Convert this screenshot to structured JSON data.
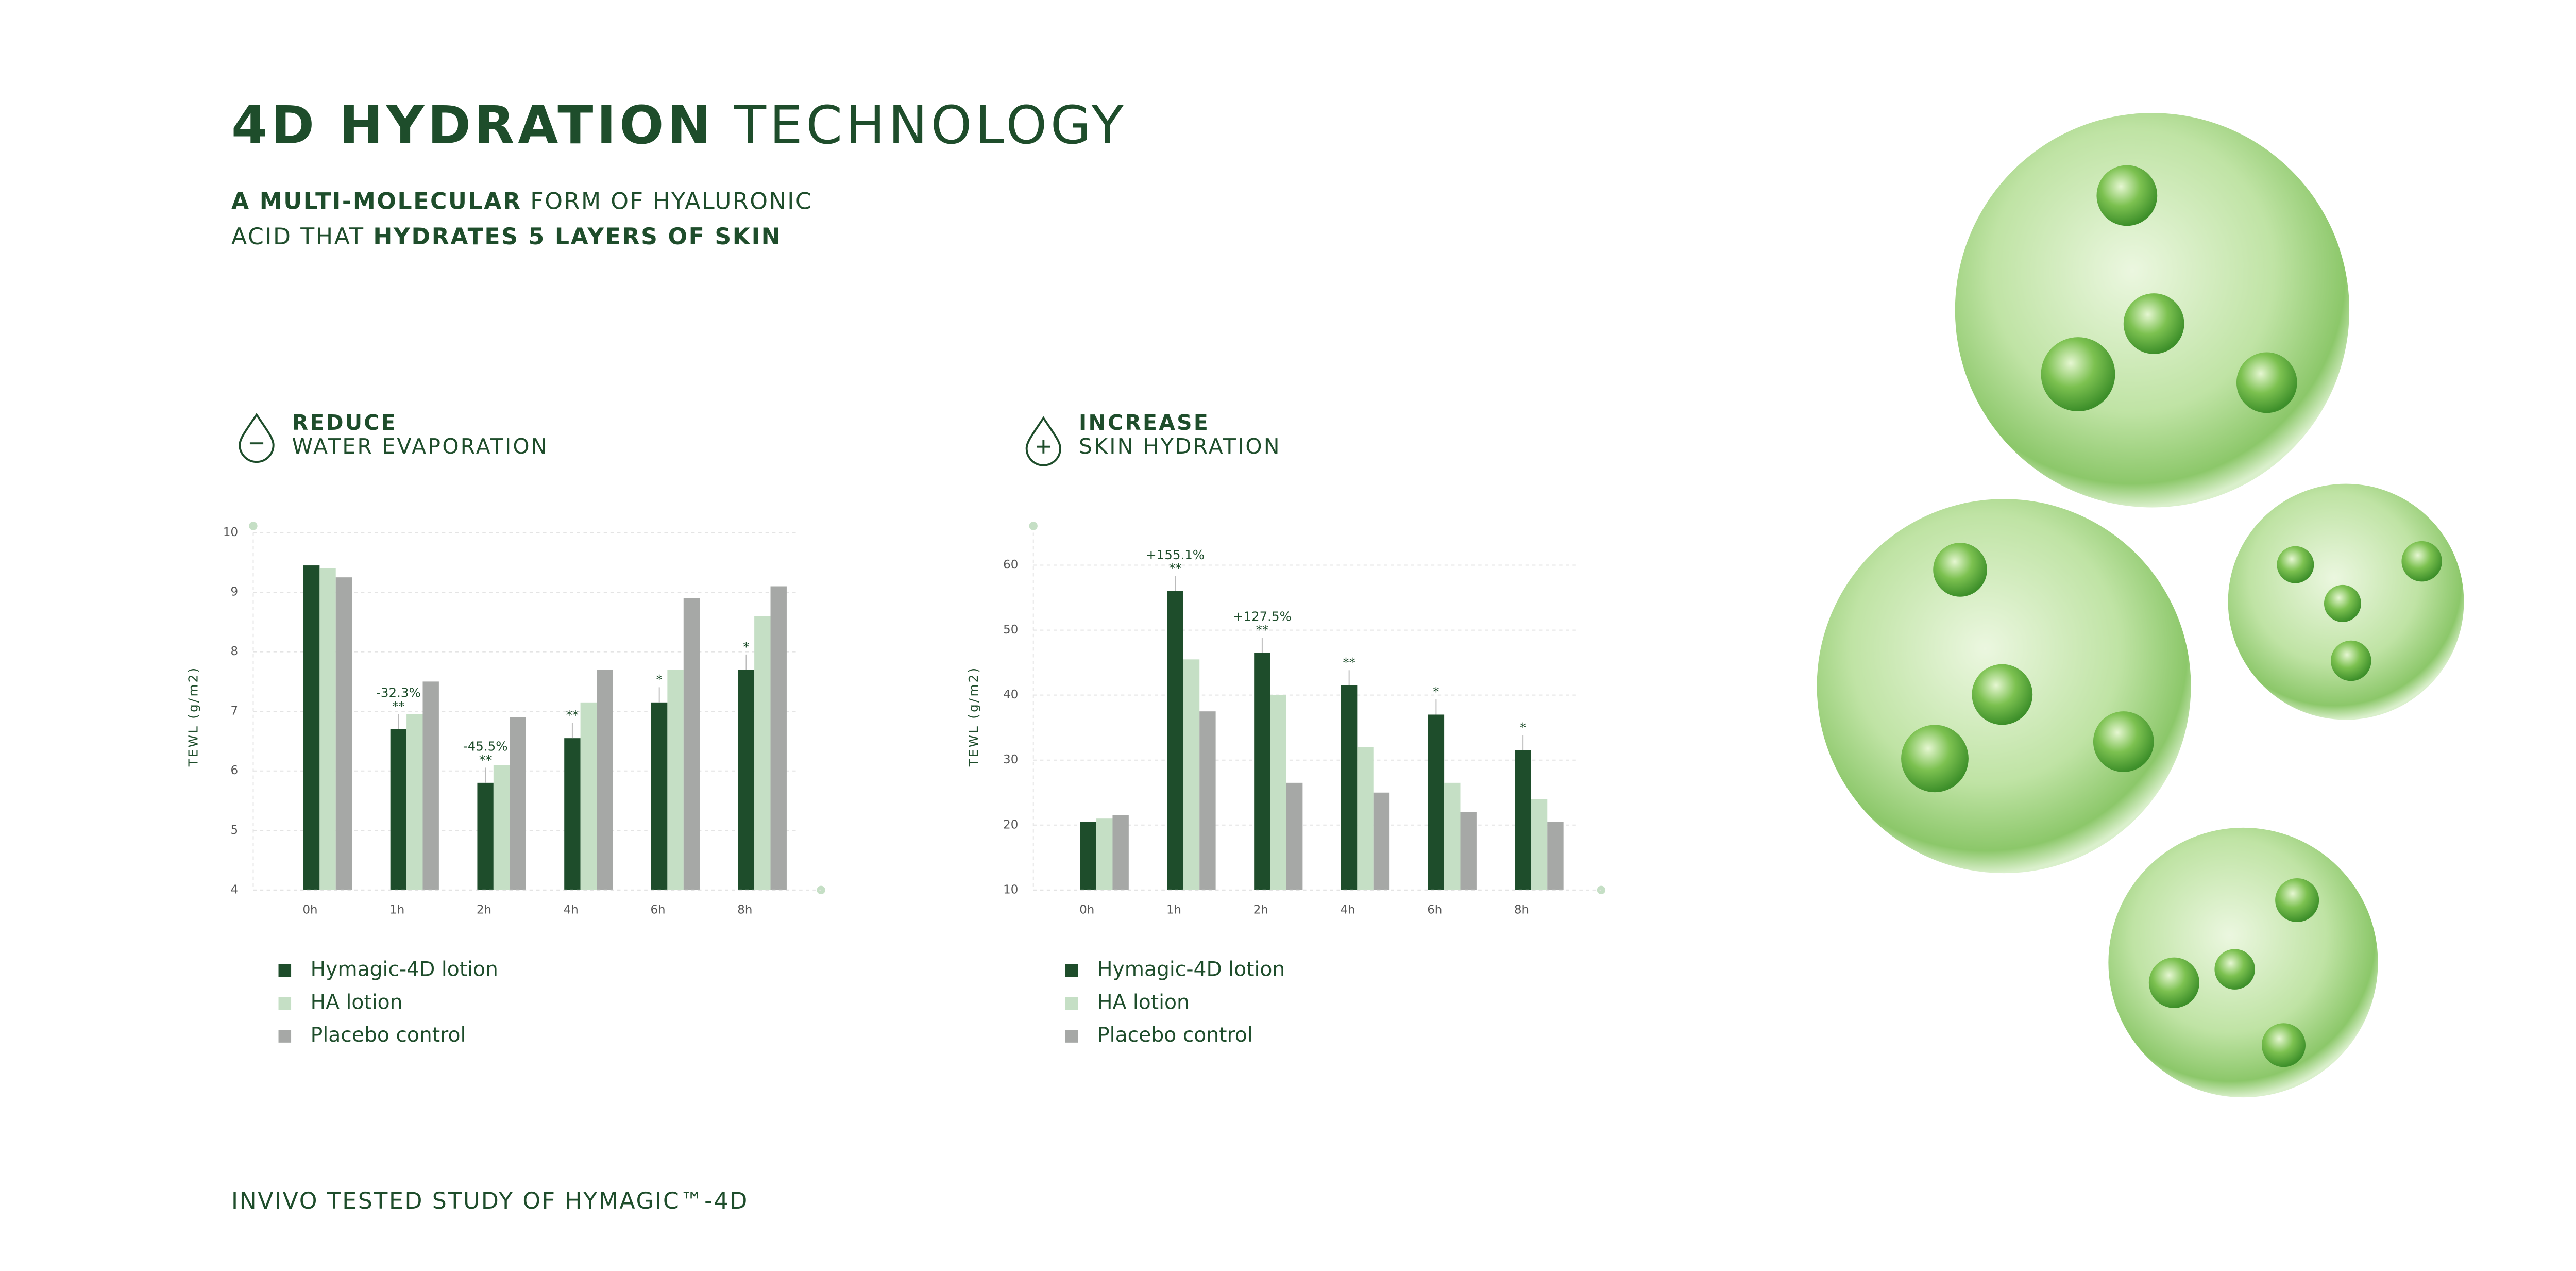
{
  "header": {
    "title": {
      "bold": "4D HYDRATION",
      "regular": " TECHNOLOGY"
    },
    "subtitle": [
      [
        "A MULTI-MOLECULAR",
        " FORM OF HYALURONIC"
      ],
      [
        "ACID THAT ",
        "HYDRATES 5 LAYERS OF SKIN"
      ]
    ]
  },
  "chart_data": [
    {
      "type": "bar",
      "title": "REDUCE",
      "subtitle": "WATER EVAPORATION",
      "y_label": "TEWL (g/m2)",
      "categories": [
        "0h",
        "1h",
        "2h",
        "4h",
        "6h",
        "8h"
      ],
      "series": [
        {
          "name": "Hymagic-4D lotion",
          "color": "#1e4d2b",
          "values": [
            9.45,
            6.7,
            5.8,
            6.55,
            7.15,
            7.7
          ]
        },
        {
          "name": "HA lotion",
          "color": "#c5dfc5",
          "values": [
            9.4,
            6.95,
            6.1,
            7.15,
            7.7,
            8.6
          ]
        },
        {
          "name": "Placebo control",
          "color": "#a6a8a6",
          "values": [
            9.25,
            7.5,
            6.9,
            7.7,
            8.9,
            9.1
          ]
        }
      ],
      "significance": [
        null,
        "**",
        "**",
        "**",
        "*",
        "*"
      ],
      "change_labels": [
        null,
        "-32.3%",
        "-45.5%",
        null,
        null,
        null
      ],
      "ylim": [
        4,
        10
      ],
      "yticks": [
        4,
        5,
        6,
        7,
        8,
        9,
        10
      ],
      "grid": true
    },
    {
      "type": "bar",
      "title": "INCREASE",
      "subtitle": "SKIN HYDRATION",
      "y_label": "TEWL (g/m2)",
      "categories": [
        "0h",
        "1h",
        "2h",
        "4h",
        "6h",
        "8h"
      ],
      "series": [
        {
          "name": "Hymagic-4D lotion",
          "color": "#1e4d2b",
          "values": [
            20.5,
            56,
            46.5,
            41.5,
            37,
            31.5
          ]
        },
        {
          "name": "HA lotion",
          "color": "#c5dfc5",
          "values": [
            21,
            45.5,
            40,
            32,
            26.5,
            24
          ]
        },
        {
          "name": "Placebo control",
          "color": "#a6a8a6",
          "values": [
            21.5,
            37.5,
            26.5,
            25,
            22,
            20.5
          ]
        }
      ],
      "significance": [
        null,
        "**",
        "**",
        "**",
        "*",
        "*"
      ],
      "change_labels": [
        null,
        "+155.1%",
        "+127.5%",
        null,
        null,
        null
      ],
      "ylim": [
        10,
        65
      ],
      "yticks": [
        10,
        20,
        30,
        40,
        50,
        60
      ],
      "grid": true
    }
  ],
  "footer": "INVIVO TESTED STUDY OF HYMAGIC™-4D"
}
